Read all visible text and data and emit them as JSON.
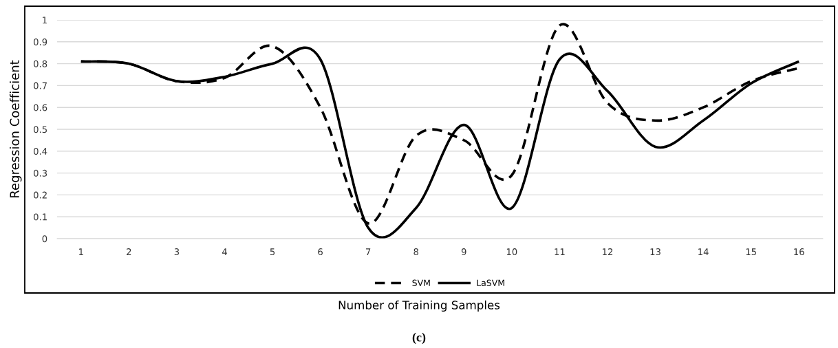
{
  "chart_data": {
    "type": "line",
    "xlabel": "Number of Training Samples",
    "ylabel": "Regression Coefficient",
    "categories": [
      "1",
      "2",
      "3",
      "4",
      "5",
      "6",
      "7",
      "8",
      "9",
      "10",
      "11",
      "12",
      "13",
      "14",
      "15",
      "16"
    ],
    "series": [
      {
        "name": "SVM",
        "color": "#000000",
        "line_style": "dashed",
        "values": [
          0.81,
          0.8,
          0.72,
          0.735,
          0.88,
          0.6,
          0.07,
          0.47,
          0.45,
          0.29,
          0.975,
          0.62,
          0.54,
          0.6,
          0.72,
          0.78
        ]
      },
      {
        "name": "LaSVM",
        "color": "#000000",
        "line_style": "solid",
        "values": [
          0.81,
          0.8,
          0.72,
          0.74,
          0.8,
          0.82,
          0.05,
          0.14,
          0.52,
          0.14,
          0.82,
          0.675,
          0.42,
          0.54,
          0.71,
          0.81
        ]
      }
    ],
    "ylim": [
      0,
      1
    ],
    "yticks": [
      0,
      0.1,
      0.2,
      0.3,
      0.4,
      0.5,
      0.6,
      0.7,
      0.8,
      0.9,
      1
    ],
    "grid": "y",
    "legend": "bottom",
    "marker": "none",
    "annotations": [
      "(c)"
    ]
  }
}
